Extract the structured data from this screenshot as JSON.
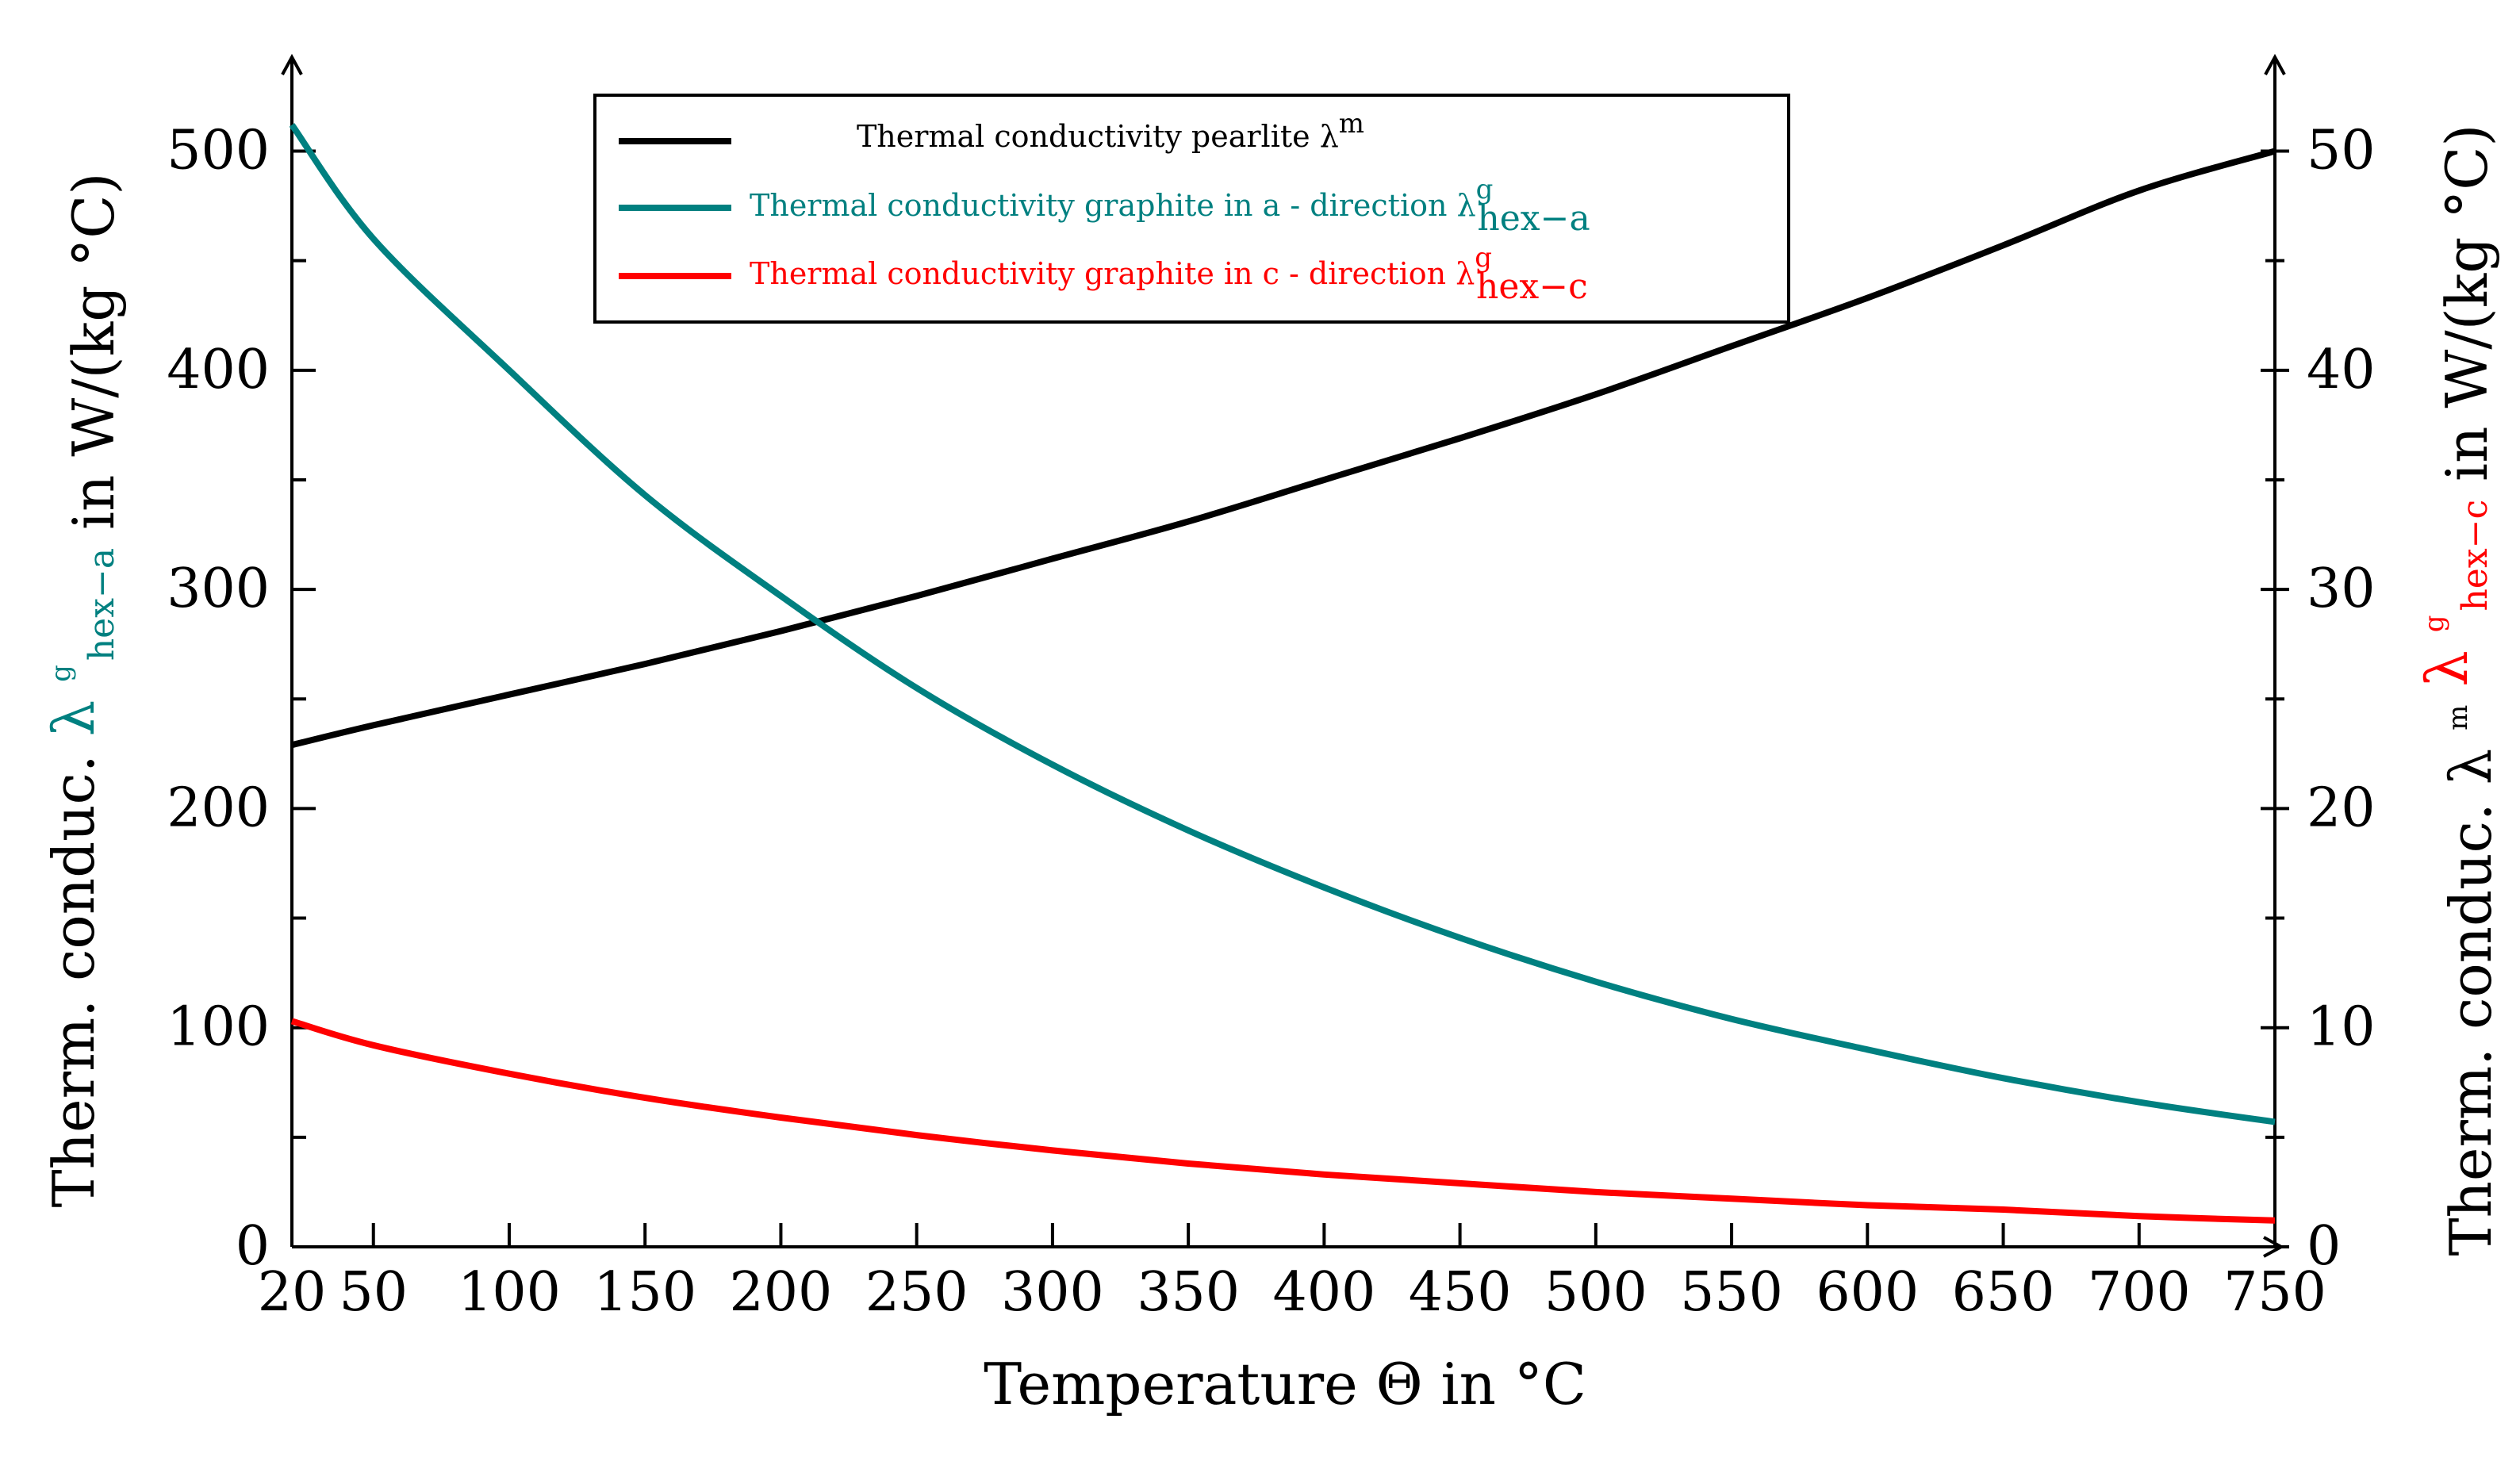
{
  "chart_data": {
    "type": "line",
    "x": [
      20,
      50,
      100,
      150,
      200,
      250,
      300,
      350,
      400,
      450,
      500,
      550,
      600,
      650,
      700,
      750
    ],
    "x_ticks": [
      20,
      50,
      100,
      150,
      200,
      250,
      300,
      350,
      400,
      450,
      500,
      550,
      600,
      650,
      700,
      750
    ],
    "xlim": [
      20,
      750
    ],
    "xlabel": "Temperature Θ in °C",
    "y_left": {
      "lim": [
        0,
        540
      ],
      "ticks": [
        0,
        100,
        200,
        300,
        400,
        500
      ],
      "label_prefix": "Therm. conduc.",
      "label_symbol": "λ",
      "label_sup": "g",
      "label_sub": "hex−a",
      "label_suffix": "in W/(kg °C)",
      "color": "#008080"
    },
    "y_right": {
      "lim": [
        0,
        54
      ],
      "ticks": [
        0,
        10,
        20,
        30,
        40,
        50
      ],
      "label_prefix": "Therm. conduc.",
      "symbol1": "λ",
      "symbol1_sup": "m",
      "symbol2": "λ",
      "symbol2_sup": "g",
      "symbol2_sub": "hex−c",
      "label_suffix": "in W/(kg °C)",
      "color2": "#ff0000"
    },
    "series": [
      {
        "name": "Thermal conductivity pearlite",
        "symbol": "λ",
        "sup": "m",
        "sub": "",
        "axis": "right",
        "color": "#000000",
        "values": [
          22.9,
          23.8,
          25.2,
          26.6,
          28.1,
          29.7,
          31.4,
          33.1,
          35.0,
          36.9,
          38.9,
          41.1,
          43.3,
          45.7,
          48.2,
          50.0
        ]
      },
      {
        "name": "Thermal conductivity graphite in a - direction",
        "symbol": "λ",
        "sup": "g",
        "sub": "hex−a",
        "axis": "left",
        "color": "#008080",
        "values": [
          512,
          460,
          400,
          343,
          297,
          255,
          220,
          190,
          164,
          141,
          121,
          104,
          90,
          77,
          66,
          57
        ]
      },
      {
        "name": "Thermal conductivity graphite in c - direction",
        "symbol": "λ",
        "sup": "g",
        "sub": "hex−c",
        "axis": "right",
        "color": "#ff0000",
        "values": [
          10.3,
          9.2,
          7.9,
          6.8,
          5.9,
          5.1,
          4.4,
          3.8,
          3.3,
          2.9,
          2.5,
          2.2,
          1.9,
          1.7,
          1.4,
          1.2
        ]
      }
    ]
  }
}
